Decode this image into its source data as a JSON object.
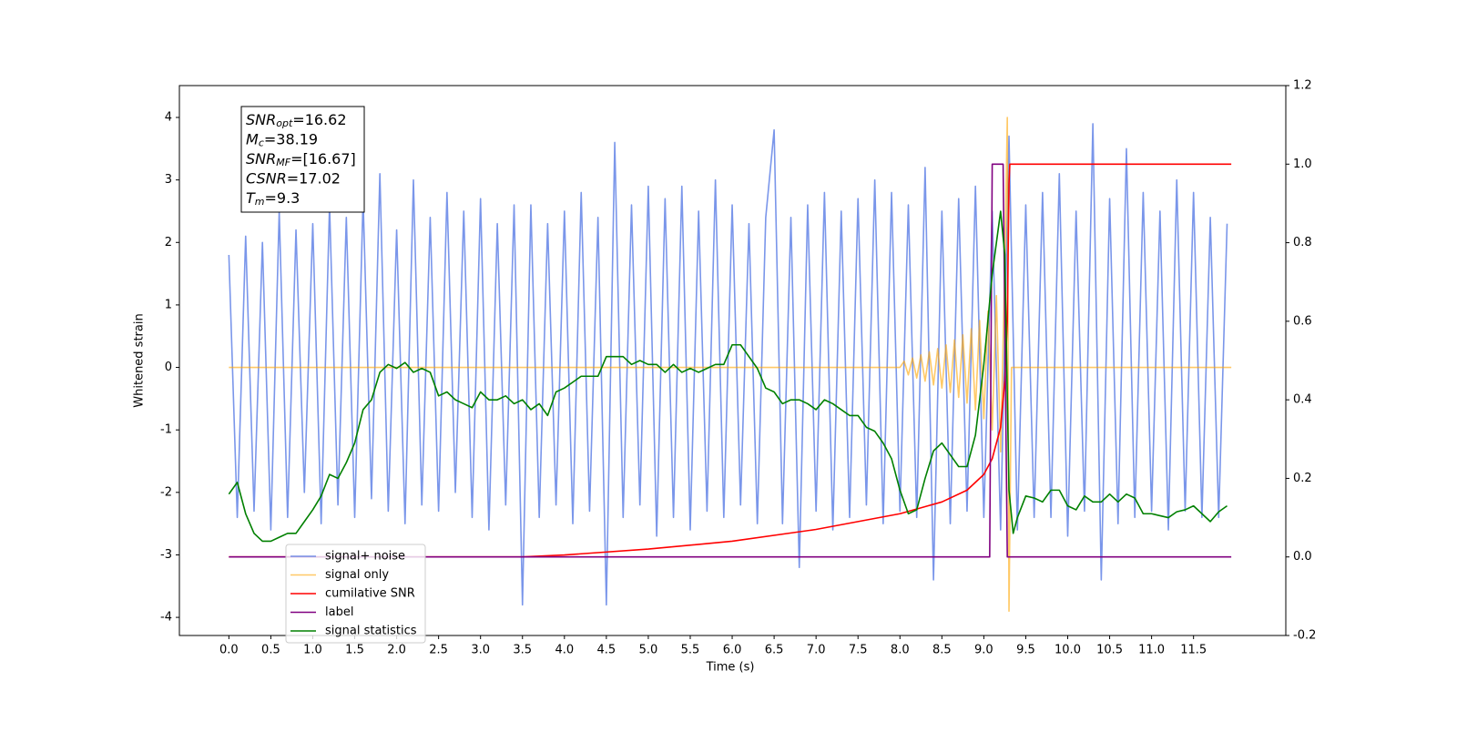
{
  "chart_data": {
    "type": "line",
    "xlabel": "Time (s)",
    "ylabel": "Whitened strain",
    "xlim": [
      -0.59,
      12.6
    ],
    "ylim": [
      -4.29,
      4.51
    ],
    "y2lim": [
      -0.2,
      1.2
    ],
    "xticks": [
      {
        "value": 0,
        "label": "0.0"
      },
      0.5,
      {
        "value": 1,
        "label": "1.0"
      },
      1.5,
      {
        "value": 2,
        "label": "2.0"
      },
      2.5,
      {
        "value": 3,
        "label": "3.0"
      },
      3.5,
      {
        "value": 4,
        "label": "4.0"
      },
      4.5,
      {
        "value": 5,
        "label": "5.0"
      },
      5.5,
      {
        "value": 6,
        "label": "6.0"
      },
      6.5,
      {
        "value": 7,
        "label": "7.0"
      },
      7.5,
      {
        "value": 8,
        "label": "8.0"
      },
      8.5,
      {
        "value": 9,
        "label": "9.0"
      },
      9.5,
      {
        "value": 10,
        "label": "10.0"
      },
      10.5,
      {
        "value": 11,
        "label": "11.0"
      },
      11.5
    ],
    "yticks": [
      -4,
      -3,
      -2,
      -1,
      0,
      1,
      2,
      3,
      4
    ],
    "y2ticks": [
      -0.2,
      {
        "value": 0,
        "label": "0.0"
      },
      0.2,
      0.4,
      0.6,
      0.8,
      {
        "value": 1,
        "label": "1.0"
      },
      1.2
    ],
    "legend": "lower left",
    "annotation": {
      "lines": [
        {
          "symbol": "SNR",
          "subscript": "opt",
          "text": "=16.62"
        },
        {
          "symbol": "M",
          "subscript": "c",
          "text": "=38.19"
        },
        {
          "symbol": "SNR",
          "subscript": "MF",
          "text": "=[16.67]"
        },
        {
          "symbol": "CSNR",
          "text": "=17.02"
        },
        {
          "symbol": "T",
          "subscript": "m",
          "text": "=9.3"
        }
      ]
    },
    "series": [
      {
        "name": "signal+ noise",
        "color": "#4169e1",
        "alpha": 0.7,
        "x": [
          0,
          0.1,
          0.2,
          0.3,
          0.4,
          0.5,
          0.6,
          0.7,
          0.8,
          0.9,
          1,
          1.1,
          1.2,
          1.3,
          1.4,
          1.5,
          1.6,
          1.7,
          1.8,
          1.9,
          2,
          2.1,
          2.2,
          2.3,
          2.4,
          2.5,
          2.6,
          2.7,
          2.8,
          2.9,
          3,
          3.1,
          3.2,
          3.3,
          3.4,
          3.5,
          3.6,
          3.7,
          3.8,
          3.9,
          4,
          4.1,
          4.2,
          4.3,
          4.4,
          4.5,
          4.6,
          4.7,
          4.8,
          4.9,
          5,
          5.1,
          5.2,
          5.3,
          5.4,
          5.5,
          5.6,
          5.7,
          5.8,
          5.9,
          6,
          6.1,
          6.2,
          6.3,
          6.4,
          6.5,
          6.6,
          6.7,
          6.8,
          6.9,
          7,
          7.1,
          7.2,
          7.3,
          7.4,
          7.5,
          7.6,
          7.7,
          7.8,
          7.9,
          8,
          8.1,
          8.2,
          8.3,
          8.4,
          8.5,
          8.6,
          8.7,
          8.8,
          8.9,
          9,
          9.1,
          9.2,
          9.3,
          9.4,
          9.5,
          9.6,
          9.7,
          9.8,
          9.9,
          10,
          10.1,
          10.2,
          10.3,
          10.4,
          10.5,
          10.6,
          10.7,
          10.8,
          10.9,
          11,
          11.1,
          11.2,
          11.3,
          11.4,
          11.5,
          11.6,
          11.7,
          11.8,
          11.9
        ],
        "values": [
          1.8,
          -2.4,
          2.1,
          -2.3,
          2.0,
          -2.6,
          2.5,
          -2.4,
          2.2,
          -2.0,
          2.3,
          -2.5,
          2.6,
          -2.2,
          2.4,
          -2.4,
          2.7,
          -2.1,
          3.1,
          -2.3,
          2.2,
          -2.5,
          3.0,
          -2.2,
          2.4,
          -2.3,
          2.8,
          -2.0,
          2.5,
          -2.4,
          2.7,
          -2.6,
          2.3,
          -2.2,
          2.6,
          -3.8,
          2.6,
          -2.4,
          2.3,
          -2.2,
          2.5,
          -2.5,
          2.8,
          -2.3,
          2.4,
          -3.8,
          3.6,
          -2.4,
          2.6,
          -2.2,
          2.9,
          -2.7,
          2.7,
          -2.4,
          2.9,
          -2.6,
          2.5,
          -2.3,
          3.0,
          -2.4,
          2.6,
          -2.2,
          2.3,
          -2.5,
          2.4,
          3.8,
          -2.5,
          2.4,
          -3.2,
          2.6,
          -2.3,
          2.8,
          -2.6,
          2.5,
          -2.4,
          2.7,
          -2.2,
          3.0,
          -2.5,
          2.8,
          -2.3,
          2.6,
          -2.4,
          3.2,
          -3.4,
          2.5,
          -2.5,
          2.7,
          -2.3,
          2.9,
          -2.4,
          2.5,
          -2.6,
          3.7,
          -2.6,
          2.6,
          -2.4,
          2.8,
          -2.4,
          3.1,
          -2.7,
          2.5,
          -2.3,
          3.9,
          -3.4,
          2.7,
          -2.5,
          3.5,
          -2.4,
          2.8,
          -2.3,
          2.5,
          -2.6,
          3.0,
          -2.3,
          2.8,
          -2.4,
          2.4,
          -2.4,
          2.3
        ]
      },
      {
        "name": "signal only",
        "color": "#ffa500",
        "alpha": 0.6,
        "x": [
          0,
          8.0,
          8.05,
          8.1,
          8.15,
          8.2,
          8.25,
          8.3,
          8.35,
          8.4,
          8.45,
          8.5,
          8.55,
          8.6,
          8.65,
          8.7,
          8.75,
          8.8,
          8.85,
          8.9,
          8.95,
          9.0,
          9.05,
          9.1,
          9.15,
          9.2,
          9.25,
          9.28,
          9.3,
          9.33,
          11.95
        ],
        "values": [
          0,
          0,
          0.1,
          -0.12,
          0.15,
          -0.17,
          0.2,
          -0.22,
          0.25,
          -0.28,
          0.3,
          -0.33,
          0.36,
          -0.4,
          0.44,
          -0.48,
          0.52,
          -0.57,
          0.62,
          -0.68,
          0.75,
          -0.82,
          0.9,
          -1.0,
          1.15,
          -1.35,
          1.6,
          4.0,
          -3.9,
          0,
          0
        ]
      },
      {
        "name": "cumilative SNR",
        "color": "#ff0000",
        "alpha": 1,
        "axis": "y2",
        "x": [
          0,
          3.5,
          4,
          5,
          6,
          7,
          7.5,
          8,
          8.5,
          8.8,
          9.0,
          9.1,
          9.2,
          9.25,
          9.28,
          9.3,
          9.31,
          11.95
        ],
        "values": [
          0,
          0,
          0.005,
          0.02,
          0.04,
          0.07,
          0.09,
          0.11,
          0.14,
          0.17,
          0.21,
          0.25,
          0.33,
          0.45,
          0.6,
          0.95,
          1.0,
          1.0
        ]
      },
      {
        "name": "label",
        "color": "#800080",
        "alpha": 1,
        "axis": "y2",
        "x": [
          0,
          9.07,
          9.1,
          9.23,
          9.28,
          11.95
        ],
        "values": [
          0,
          0,
          1,
          1,
          0,
          0
        ]
      },
      {
        "name": "signal statistics",
        "color": "#008000",
        "alpha": 1,
        "axis": "y2",
        "x": [
          0,
          0.1,
          0.2,
          0.3,
          0.4,
          0.5,
          0.6,
          0.7,
          0.8,
          0.9,
          1,
          1.1,
          1.2,
          1.3,
          1.4,
          1.5,
          1.6,
          1.7,
          1.8,
          1.9,
          2,
          2.1,
          2.2,
          2.3,
          2.4,
          2.5,
          2.6,
          2.7,
          2.8,
          2.9,
          3,
          3.1,
          3.2,
          3.3,
          3.4,
          3.5,
          3.6,
          3.7,
          3.8,
          3.9,
          4,
          4.1,
          4.2,
          4.3,
          4.4,
          4.5,
          4.6,
          4.7,
          4.8,
          4.9,
          5,
          5.1,
          5.2,
          5.3,
          5.4,
          5.5,
          5.6,
          5.7,
          5.8,
          5.9,
          6,
          6.1,
          6.2,
          6.3,
          6.4,
          6.5,
          6.6,
          6.7,
          6.8,
          6.9,
          7,
          7.1,
          7.2,
          7.3,
          7.4,
          7.5,
          7.6,
          7.7,
          7.8,
          7.9,
          8,
          8.1,
          8.2,
          8.3,
          8.4,
          8.5,
          8.6,
          8.7,
          8.8,
          8.9,
          9,
          9.1,
          9.2,
          9.25,
          9.3,
          9.35,
          9.4,
          9.5,
          9.6,
          9.7,
          9.8,
          9.9,
          10,
          10.1,
          10.2,
          10.3,
          10.4,
          10.5,
          10.6,
          10.7,
          10.8,
          10.9,
          11,
          11.1,
          11.2,
          11.3,
          11.4,
          11.5,
          11.6,
          11.7,
          11.8,
          11.9
        ],
        "values": [
          0.16,
          0.19,
          0.11,
          0.06,
          0.04,
          0.04,
          0.05,
          0.06,
          0.06,
          0.09,
          0.12,
          0.155,
          0.21,
          0.2,
          0.24,
          0.29,
          0.375,
          0.4,
          0.47,
          0.49,
          0.48,
          0.495,
          0.47,
          0.48,
          0.47,
          0.41,
          0.42,
          0.4,
          0.39,
          0.38,
          0.42,
          0.4,
          0.4,
          0.41,
          0.39,
          0.4,
          0.375,
          0.39,
          0.36,
          0.42,
          0.43,
          0.445,
          0.46,
          0.46,
          0.46,
          0.51,
          0.51,
          0.51,
          0.49,
          0.5,
          0.49,
          0.49,
          0.47,
          0.49,
          0.47,
          0.48,
          0.47,
          0.48,
          0.49,
          0.49,
          0.54,
          0.54,
          0.51,
          0.48,
          0.43,
          0.42,
          0.39,
          0.4,
          0.4,
          0.39,
          0.375,
          0.4,
          0.39,
          0.375,
          0.36,
          0.36,
          0.33,
          0.32,
          0.29,
          0.25,
          0.17,
          0.11,
          0.12,
          0.2,
          0.27,
          0.29,
          0.26,
          0.23,
          0.23,
          0.31,
          0.49,
          0.72,
          0.88,
          0.77,
          0.17,
          0.06,
          0.1,
          0.155,
          0.15,
          0.14,
          0.17,
          0.17,
          0.13,
          0.12,
          0.155,
          0.14,
          0.14,
          0.16,
          0.14,
          0.16,
          0.15,
          0.11,
          0.11,
          0.105,
          0.1,
          0.115,
          0.12,
          0.13,
          0.11,
          0.09,
          0.115,
          0.13
        ]
      }
    ]
  }
}
